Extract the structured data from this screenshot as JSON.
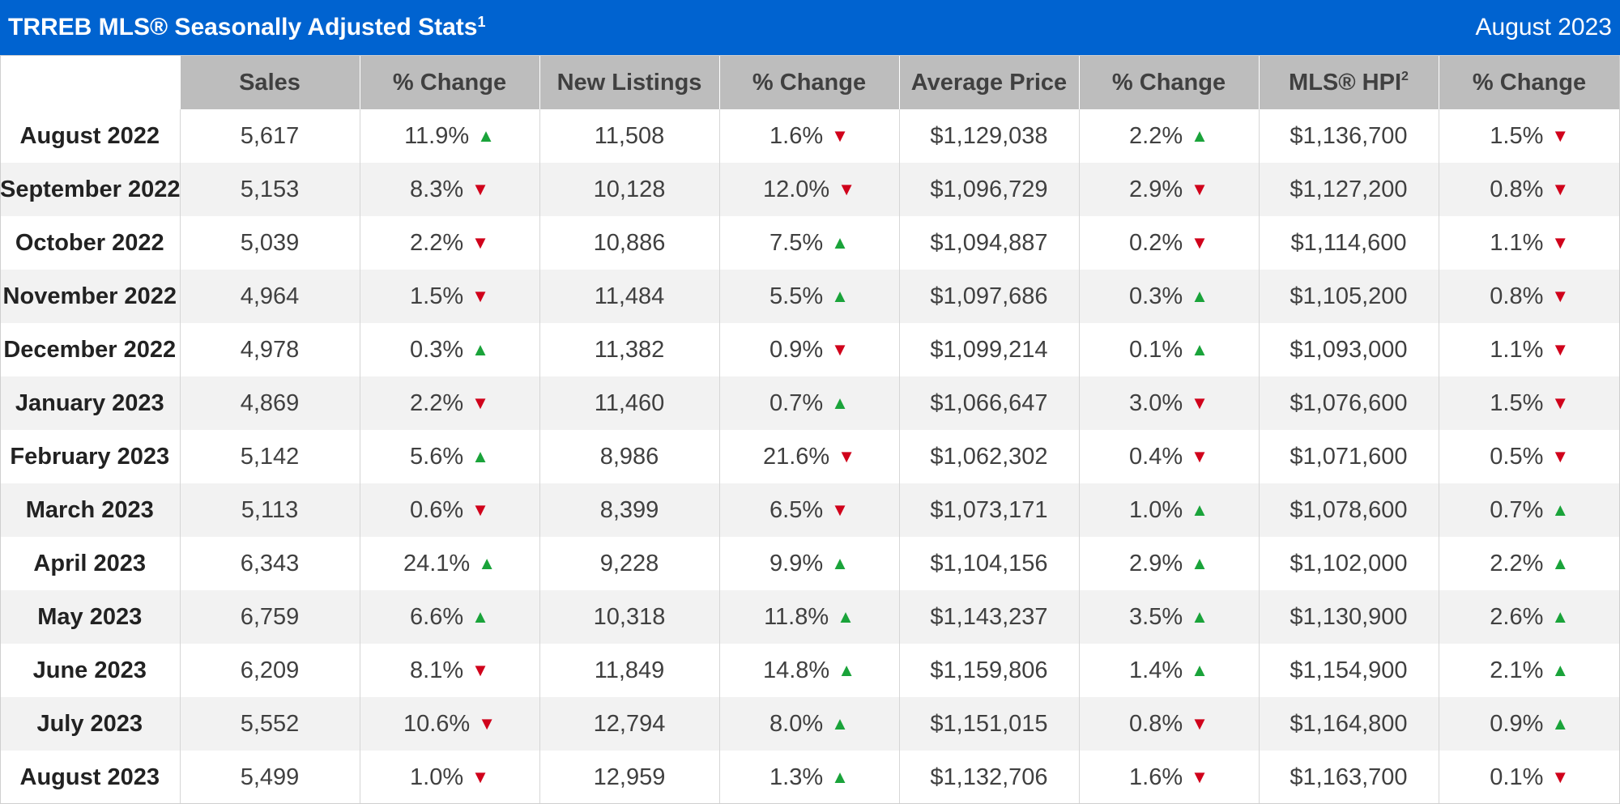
{
  "header": {
    "title": "TRREB MLS® Seasonally Adjusted Stats",
    "title_sup": "1",
    "period": "August 2023",
    "colors": {
      "banner": "#0063d0",
      "header_cells": "#bdbdbd",
      "up": "#1aa33a",
      "down": "#d0021b"
    }
  },
  "columns": [
    {
      "label": "Sales",
      "sup": ""
    },
    {
      "label": "% Change",
      "sup": ""
    },
    {
      "label": "New Listings",
      "sup": ""
    },
    {
      "label": "% Change",
      "sup": ""
    },
    {
      "label": "Average Price",
      "sup": ""
    },
    {
      "label": "% Change",
      "sup": ""
    },
    {
      "label": "MLS® HPI",
      "sup": "2"
    },
    {
      "label": "% Change",
      "sup": ""
    }
  ],
  "rows": [
    {
      "month": "August 2022",
      "sales": "5,617",
      "sales_chg": "11.9%",
      "sales_dir": "up",
      "listings": "11,508",
      "listings_chg": "1.6%",
      "listings_dir": "down",
      "avg_price": "$1,129,038",
      "avg_chg": "2.2%",
      "avg_dir": "up",
      "hpi": "$1,136,700",
      "hpi_chg": "1.5%",
      "hpi_dir": "down"
    },
    {
      "month": "September 2022",
      "sales": "5,153",
      "sales_chg": "8.3%",
      "sales_dir": "down",
      "listings": "10,128",
      "listings_chg": "12.0%",
      "listings_dir": "down",
      "avg_price": "$1,096,729",
      "avg_chg": "2.9%",
      "avg_dir": "down",
      "hpi": "$1,127,200",
      "hpi_chg": "0.8%",
      "hpi_dir": "down"
    },
    {
      "month": "October 2022",
      "sales": "5,039",
      "sales_chg": "2.2%",
      "sales_dir": "down",
      "listings": "10,886",
      "listings_chg": "7.5%",
      "listings_dir": "up",
      "avg_price": "$1,094,887",
      "avg_chg": "0.2%",
      "avg_dir": "down",
      "hpi": "$1,114,600",
      "hpi_chg": "1.1%",
      "hpi_dir": "down"
    },
    {
      "month": "November 2022",
      "sales": "4,964",
      "sales_chg": "1.5%",
      "sales_dir": "down",
      "listings": "11,484",
      "listings_chg": "5.5%",
      "listings_dir": "up",
      "avg_price": "$1,097,686",
      "avg_chg": "0.3%",
      "avg_dir": "up",
      "hpi": "$1,105,200",
      "hpi_chg": "0.8%",
      "hpi_dir": "down"
    },
    {
      "month": "December 2022",
      "sales": "4,978",
      "sales_chg": "0.3%",
      "sales_dir": "up",
      "listings": "11,382",
      "listings_chg": "0.9%",
      "listings_dir": "down",
      "avg_price": "$1,099,214",
      "avg_chg": "0.1%",
      "avg_dir": "up",
      "hpi": "$1,093,000",
      "hpi_chg": "1.1%",
      "hpi_dir": "down"
    },
    {
      "month": "January 2023",
      "sales": "4,869",
      "sales_chg": "2.2%",
      "sales_dir": "down",
      "listings": "11,460",
      "listings_chg": "0.7%",
      "listings_dir": "up",
      "avg_price": "$1,066,647",
      "avg_chg": "3.0%",
      "avg_dir": "down",
      "hpi": "$1,076,600",
      "hpi_chg": "1.5%",
      "hpi_dir": "down"
    },
    {
      "month": "February 2023",
      "sales": "5,142",
      "sales_chg": "5.6%",
      "sales_dir": "up",
      "listings": "8,986",
      "listings_chg": "21.6%",
      "listings_dir": "down",
      "avg_price": "$1,062,302",
      "avg_chg": "0.4%",
      "avg_dir": "down",
      "hpi": "$1,071,600",
      "hpi_chg": "0.5%",
      "hpi_dir": "down"
    },
    {
      "month": "March 2023",
      "sales": "5,113",
      "sales_chg": "0.6%",
      "sales_dir": "down",
      "listings": "8,399",
      "listings_chg": "6.5%",
      "listings_dir": "down",
      "avg_price": "$1,073,171",
      "avg_chg": "1.0%",
      "avg_dir": "up",
      "hpi": "$1,078,600",
      "hpi_chg": "0.7%",
      "hpi_dir": "up"
    },
    {
      "month": "April 2023",
      "sales": "6,343",
      "sales_chg": "24.1%",
      "sales_dir": "up",
      "listings": "9,228",
      "listings_chg": "9.9%",
      "listings_dir": "up",
      "avg_price": "$1,104,156",
      "avg_chg": "2.9%",
      "avg_dir": "up",
      "hpi": "$1,102,000",
      "hpi_chg": "2.2%",
      "hpi_dir": "up"
    },
    {
      "month": "May 2023",
      "sales": "6,759",
      "sales_chg": "6.6%",
      "sales_dir": "up",
      "listings": "10,318",
      "listings_chg": "11.8%",
      "listings_dir": "up",
      "avg_price": "$1,143,237",
      "avg_chg": "3.5%",
      "avg_dir": "up",
      "hpi": "$1,130,900",
      "hpi_chg": "2.6%",
      "hpi_dir": "up"
    },
    {
      "month": "June 2023",
      "sales": "6,209",
      "sales_chg": "8.1%",
      "sales_dir": "down",
      "listings": "11,849",
      "listings_chg": "14.8%",
      "listings_dir": "up",
      "avg_price": "$1,159,806",
      "avg_chg": "1.4%",
      "avg_dir": "up",
      "hpi": "$1,154,900",
      "hpi_chg": "2.1%",
      "hpi_dir": "up"
    },
    {
      "month": "July 2023",
      "sales": "5,552",
      "sales_chg": "10.6%",
      "sales_dir": "down",
      "listings": "12,794",
      "listings_chg": "8.0%",
      "listings_dir": "up",
      "avg_price": "$1,151,015",
      "avg_chg": "0.8%",
      "avg_dir": "down",
      "hpi": "$1,164,800",
      "hpi_chg": "0.9%",
      "hpi_dir": "up"
    },
    {
      "month": "August 2023",
      "sales": "5,499",
      "sales_chg": "1.0%",
      "sales_dir": "down",
      "listings": "12,959",
      "listings_chg": "1.3%",
      "listings_dir": "up",
      "avg_price": "$1,132,706",
      "avg_chg": "1.6%",
      "avg_dir": "down",
      "hpi": "$1,163,700",
      "hpi_chg": "0.1%",
      "hpi_dir": "down"
    }
  ],
  "icons": {
    "up": "triangle-up-icon",
    "down": "triangle-down-icon"
  }
}
